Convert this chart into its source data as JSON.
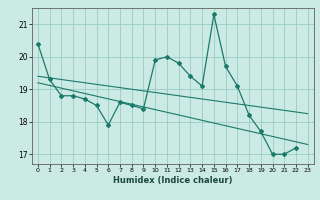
{
  "xlabel": "Humidex (Indice chaleur)",
  "background_color": "#cceae4",
  "grid_color": "#99ccc4",
  "line_color": "#1a7a6a",
  "xlim": [
    -0.5,
    23.5
  ],
  "ylim": [
    16.7,
    21.5
  ],
  "y_main": [
    20.4,
    19.3,
    18.8,
    18.8,
    18.7,
    18.5,
    17.9,
    18.6,
    18.5,
    18.4,
    19.9,
    20.0,
    19.8,
    19.4,
    19.1,
    21.3,
    19.7,
    19.1,
    18.2,
    17.7,
    17.0,
    17.0,
    17.2,
    null
  ],
  "trend1_x": [
    0,
    23
  ],
  "trend1_y": [
    19.4,
    18.25
  ],
  "trend2_x": [
    0,
    23
  ],
  "trend2_y": [
    19.2,
    17.3
  ],
  "yticks": [
    17,
    18,
    19,
    20,
    21
  ],
  "xtick_labels": [
    "0",
    "1",
    "2",
    "3",
    "4",
    "5",
    "6",
    "7",
    "8",
    "9",
    "10",
    "11",
    "12",
    "13",
    "14",
    "15",
    "16",
    "17",
    "18",
    "19",
    "20",
    "21",
    "22",
    "23"
  ]
}
